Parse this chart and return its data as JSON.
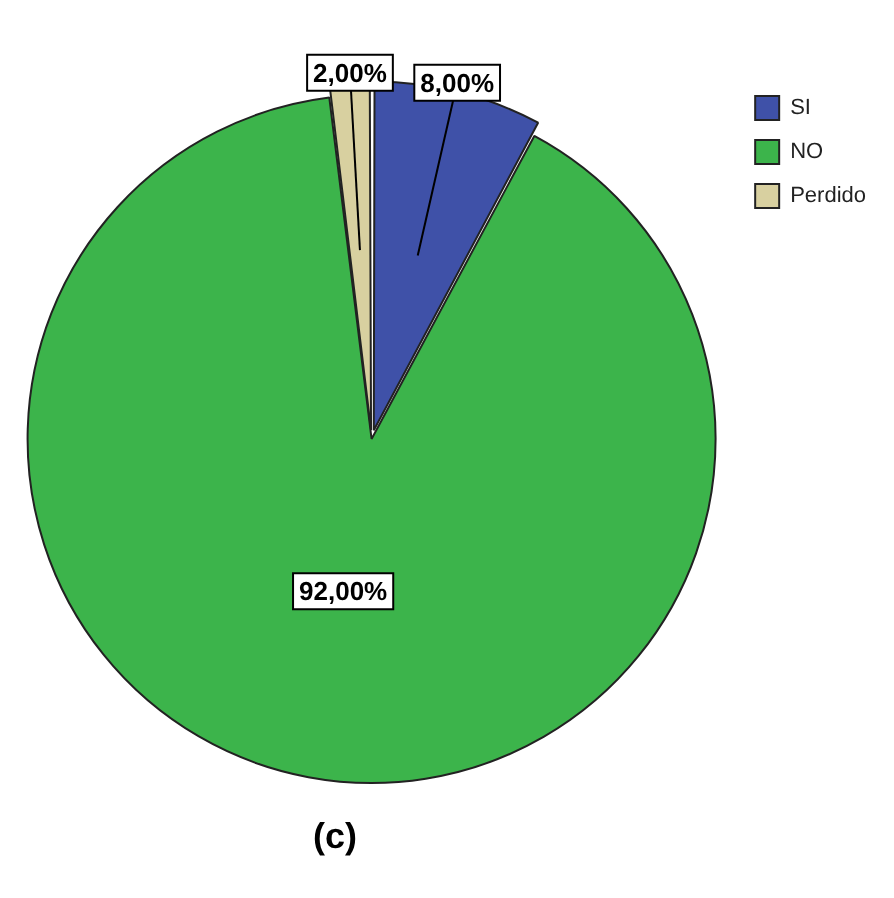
{
  "chart_data": {
    "type": "pie",
    "categories": [
      "SI",
      "NO",
      "Perdido"
    ],
    "values": [
      8,
      92,
      2
    ],
    "colors": [
      "#3f51a8",
      "#3cb44b",
      "#d8d0a0"
    ],
    "value_labels": [
      "8,00%",
      "92,00%",
      "2,00%"
    ],
    "legend": "top right",
    "annotations": [
      "(c)"
    ]
  }
}
